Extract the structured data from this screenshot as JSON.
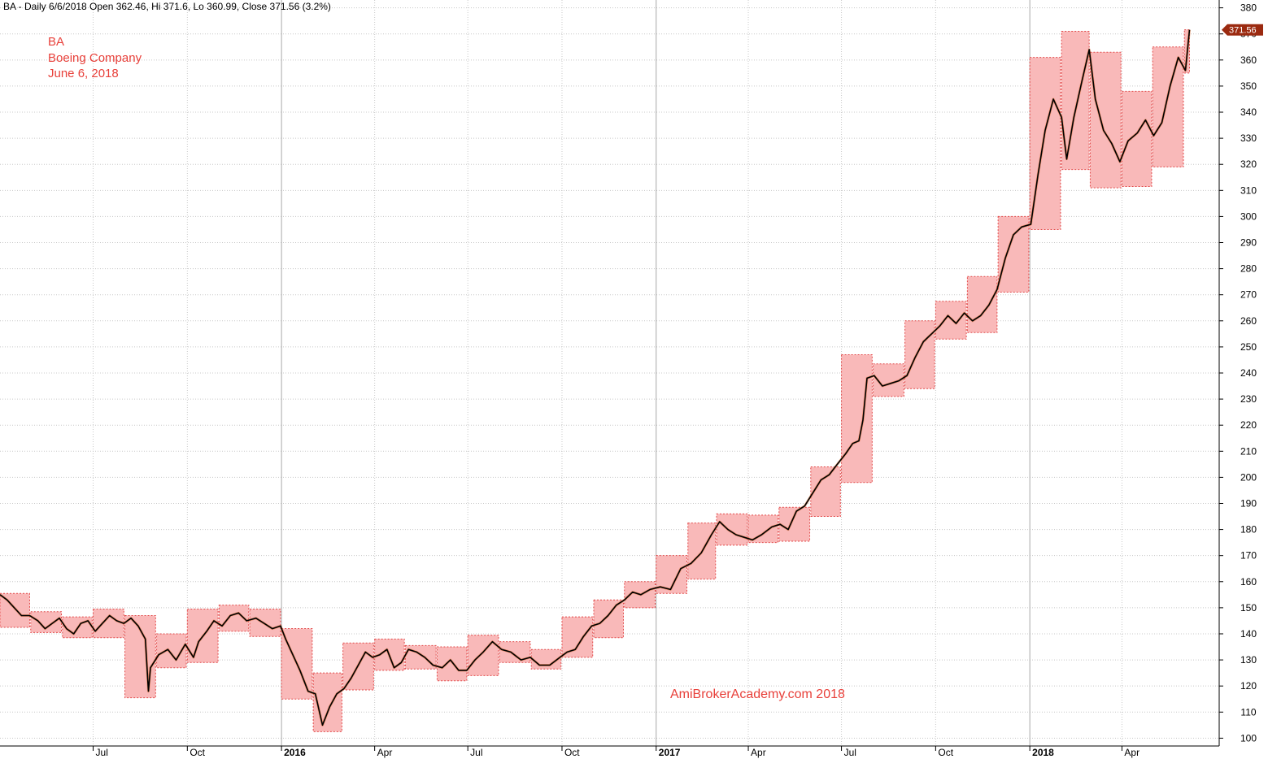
{
  "header": {
    "symbol": "BA",
    "text": "BA - Daily 6/6/2018 Open 362.46, Hi 371.6, Lo 360.99, Close 371.56 (3.2%)"
  },
  "annotation": {
    "line1": "BA",
    "line2": "Boeing Company",
    "line3": "June 6, 2018"
  },
  "watermark": "AmiBrokerAcademy.com  2018",
  "colors": {
    "box_fill": "#f9b9b9",
    "box_stroke": "#e24a4a",
    "price_line": "#000000",
    "accent": "#e8403a",
    "last_price_bg": "#9b2a10",
    "grid": "#c8c8c8"
  },
  "chart_data": {
    "type": "line",
    "title": "",
    "xlabel": "",
    "ylabel": "",
    "ylim": [
      97,
      383
    ],
    "xlim": [
      "2015-04-01",
      "2018-07-05"
    ],
    "grid": true,
    "y_ticks": [
      100,
      110,
      120,
      130,
      140,
      150,
      160,
      170,
      180,
      190,
      200,
      210,
      220,
      230,
      240,
      250,
      260,
      270,
      280,
      290,
      300,
      310,
      320,
      330,
      340,
      350,
      360,
      370,
      380
    ],
    "x_ticks": [
      {
        "label": "Jul",
        "date": "2015-07-01",
        "bold": false
      },
      {
        "label": "Oct",
        "date": "2015-10-01",
        "bold": false
      },
      {
        "label": "2016",
        "date": "2016-01-01",
        "bold": true
      },
      {
        "label": "Apr",
        "date": "2016-04-01",
        "bold": false
      },
      {
        "label": "Jul",
        "date": "2016-07-01",
        "bold": false
      },
      {
        "label": "Oct",
        "date": "2016-10-01",
        "bold": false
      },
      {
        "label": "2017",
        "date": "2017-01-01",
        "bold": true
      },
      {
        "label": "Apr",
        "date": "2017-04-01",
        "bold": false
      },
      {
        "label": "Jul",
        "date": "2017-07-01",
        "bold": false
      },
      {
        "label": "Oct",
        "date": "2017-10-01",
        "bold": false
      },
      {
        "label": "2018",
        "date": "2018-01-01",
        "bold": true
      },
      {
        "label": "Apr",
        "date": "2018-04-01",
        "bold": false
      }
    ],
    "last_price": "371.56",
    "last_value": 371.56,
    "series": [
      {
        "values": [
          [
            "2015-04-01",
            155
          ],
          [
            "2015-04-08",
            153
          ],
          [
            "2015-04-15",
            150
          ],
          [
            "2015-04-22",
            147
          ],
          [
            "2015-04-30",
            147
          ],
          [
            "2015-05-08",
            145
          ],
          [
            "2015-05-15",
            142
          ],
          [
            "2015-05-22",
            144
          ],
          [
            "2015-05-29",
            146
          ],
          [
            "2015-06-05",
            142
          ],
          [
            "2015-06-12",
            140
          ],
          [
            "2015-06-19",
            144
          ],
          [
            "2015-06-26",
            145
          ],
          [
            "2015-07-03",
            141
          ],
          [
            "2015-07-10",
            144
          ],
          [
            "2015-07-17",
            147
          ],
          [
            "2015-07-24",
            145
          ],
          [
            "2015-07-31",
            144
          ],
          [
            "2015-08-07",
            146
          ],
          [
            "2015-08-14",
            143
          ],
          [
            "2015-08-21",
            138
          ],
          [
            "2015-08-24",
            118
          ],
          [
            "2015-08-26",
            127
          ],
          [
            "2015-09-03",
            132
          ],
          [
            "2015-09-12",
            134
          ],
          [
            "2015-09-20",
            130
          ],
          [
            "2015-09-29",
            136
          ],
          [
            "2015-10-07",
            131
          ],
          [
            "2015-10-12",
            137
          ],
          [
            "2015-10-20",
            141
          ],
          [
            "2015-10-27",
            145
          ],
          [
            "2015-11-04",
            143
          ],
          [
            "2015-11-12",
            147
          ],
          [
            "2015-11-20",
            148
          ],
          [
            "2015-11-28",
            145
          ],
          [
            "2015-12-07",
            146
          ],
          [
            "2015-12-15",
            144
          ],
          [
            "2015-12-23",
            142
          ],
          [
            "2015-12-31",
            143
          ],
          [
            "2016-01-05",
            138
          ],
          [
            "2016-01-12",
            132
          ],
          [
            "2016-01-19",
            126
          ],
          [
            "2016-01-27",
            118
          ],
          [
            "2016-02-03",
            117
          ],
          [
            "2016-02-10",
            105
          ],
          [
            "2016-02-17",
            112
          ],
          [
            "2016-02-24",
            117
          ],
          [
            "2016-03-02",
            119
          ],
          [
            "2016-03-09",
            123
          ],
          [
            "2016-03-16",
            128
          ],
          [
            "2016-03-23",
            133
          ],
          [
            "2016-03-30",
            131
          ],
          [
            "2016-04-06",
            132
          ],
          [
            "2016-04-13",
            134
          ],
          [
            "2016-04-20",
            127
          ],
          [
            "2016-04-27",
            129
          ],
          [
            "2016-05-04",
            134
          ],
          [
            "2016-05-12",
            133
          ],
          [
            "2016-05-20",
            131
          ],
          [
            "2016-05-28",
            128
          ],
          [
            "2016-06-06",
            127
          ],
          [
            "2016-06-14",
            130
          ],
          [
            "2016-06-22",
            126
          ],
          [
            "2016-06-30",
            126
          ],
          [
            "2016-07-08",
            130
          ],
          [
            "2016-07-16",
            133
          ],
          [
            "2016-07-25",
            137
          ],
          [
            "2016-08-03",
            134
          ],
          [
            "2016-08-12",
            133
          ],
          [
            "2016-08-22",
            130
          ],
          [
            "2016-08-31",
            131
          ],
          [
            "2016-09-09",
            128
          ],
          [
            "2016-09-19",
            128
          ],
          [
            "2016-09-29",
            131
          ],
          [
            "2016-10-06",
            133
          ],
          [
            "2016-10-14",
            134
          ],
          [
            "2016-10-22",
            139
          ],
          [
            "2016-10-30",
            143
          ],
          [
            "2016-11-07",
            144
          ],
          [
            "2016-11-15",
            147
          ],
          [
            "2016-11-23",
            151
          ],
          [
            "2016-12-01",
            153
          ],
          [
            "2016-12-09",
            156
          ],
          [
            "2016-12-17",
            155
          ],
          [
            "2016-12-26",
            157
          ],
          [
            "2017-01-05",
            158
          ],
          [
            "2017-01-15",
            157
          ],
          [
            "2017-01-25",
            165
          ],
          [
            "2017-02-04",
            167
          ],
          [
            "2017-02-14",
            171
          ],
          [
            "2017-02-24",
            178
          ],
          [
            "2017-03-04",
            183
          ],
          [
            "2017-03-12",
            180
          ],
          [
            "2017-03-20",
            178
          ],
          [
            "2017-03-28",
            177
          ],
          [
            "2017-04-05",
            176
          ],
          [
            "2017-04-14",
            178
          ],
          [
            "2017-04-24",
            181
          ],
          [
            "2017-05-02",
            182
          ],
          [
            "2017-05-10",
            180
          ],
          [
            "2017-05-18",
            187
          ],
          [
            "2017-05-26",
            189
          ],
          [
            "2017-06-03",
            194
          ],
          [
            "2017-06-11",
            199
          ],
          [
            "2017-06-19",
            201
          ],
          [
            "2017-06-27",
            205
          ],
          [
            "2017-07-05",
            209
          ],
          [
            "2017-07-12",
            213
          ],
          [
            "2017-07-18",
            214
          ],
          [
            "2017-07-22",
            222
          ],
          [
            "2017-07-26",
            238
          ],
          [
            "2017-08-02",
            239
          ],
          [
            "2017-08-10",
            235
          ],
          [
            "2017-08-18",
            236
          ],
          [
            "2017-08-26",
            237
          ],
          [
            "2017-09-03",
            239
          ],
          [
            "2017-09-11",
            246
          ],
          [
            "2017-09-19",
            252
          ],
          [
            "2017-09-27",
            255
          ],
          [
            "2017-10-05",
            258
          ],
          [
            "2017-10-13",
            262
          ],
          [
            "2017-10-21",
            259
          ],
          [
            "2017-10-29",
            263
          ],
          [
            "2017-11-06",
            260
          ],
          [
            "2017-11-14",
            262
          ],
          [
            "2017-11-22",
            266
          ],
          [
            "2017-11-30",
            272
          ],
          [
            "2017-12-08",
            284
          ],
          [
            "2017-12-16",
            293
          ],
          [
            "2017-12-24",
            296
          ],
          [
            "2018-01-02",
            297
          ],
          [
            "2018-01-09",
            316
          ],
          [
            "2018-01-16",
            333
          ],
          [
            "2018-01-24",
            345
          ],
          [
            "2018-02-01",
            338
          ],
          [
            "2018-02-06",
            322
          ],
          [
            "2018-02-13",
            338
          ],
          [
            "2018-02-21",
            352
          ],
          [
            "2018-02-28",
            364
          ],
          [
            "2018-03-06",
            345
          ],
          [
            "2018-03-14",
            333
          ],
          [
            "2018-03-22",
            328
          ],
          [
            "2018-03-30",
            321
          ],
          [
            "2018-04-07",
            329
          ],
          [
            "2018-04-16",
            332
          ],
          [
            "2018-04-24",
            337
          ],
          [
            "2018-05-02",
            331
          ],
          [
            "2018-05-10",
            336
          ],
          [
            "2018-05-18",
            350
          ],
          [
            "2018-05-26",
            361
          ],
          [
            "2018-06-02",
            356
          ],
          [
            "2018-06-06",
            371.56
          ]
        ]
      }
    ],
    "range_boxes": [
      [
        "2015-04-01",
        "2015-04-30",
        142.5,
        155.5
      ],
      [
        "2015-05-01",
        "2015-05-31",
        140.5,
        148.5
      ],
      [
        "2015-06-01",
        "2015-06-30",
        138.5,
        146.5
      ],
      [
        "2015-07-01",
        "2015-07-31",
        138.5,
        149.5
      ],
      [
        "2015-08-01",
        "2015-08-31",
        115.5,
        147
      ],
      [
        "2015-09-01",
        "2015-09-30",
        127,
        140
      ],
      [
        "2015-10-01",
        "2015-10-31",
        129,
        149.5
      ],
      [
        "2015-11-01",
        "2015-11-30",
        141,
        151
      ],
      [
        "2015-12-01",
        "2015-12-31",
        139,
        149.5
      ],
      [
        "2016-01-01",
        "2016-01-31",
        115,
        142
      ],
      [
        "2016-02-01",
        "2016-02-29",
        102.5,
        125
      ],
      [
        "2016-03-01",
        "2016-03-31",
        118.5,
        136.5
      ],
      [
        "2016-04-01",
        "2016-04-30",
        126,
        138
      ],
      [
        "2016-05-01",
        "2016-05-31",
        126.5,
        135.5
      ],
      [
        "2016-06-01",
        "2016-06-30",
        122,
        135
      ],
      [
        "2016-07-01",
        "2016-07-31",
        124,
        139.5
      ],
      [
        "2016-08-01",
        "2016-08-31",
        129,
        137
      ],
      [
        "2016-09-01",
        "2016-09-30",
        126.5,
        134
      ],
      [
        "2016-10-01",
        "2016-10-31",
        131,
        146.5
      ],
      [
        "2016-11-01",
        "2016-11-30",
        138.5,
        153
      ],
      [
        "2016-12-01",
        "2016-12-31",
        150,
        160
      ],
      [
        "2017-01-01",
        "2017-01-31",
        155.5,
        170
      ],
      [
        "2017-02-01",
        "2017-02-28",
        161,
        182.5
      ],
      [
        "2017-03-01",
        "2017-03-31",
        174,
        186
      ],
      [
        "2017-04-01",
        "2017-04-30",
        175,
        185.5
      ],
      [
        "2017-05-01",
        "2017-05-31",
        175.5,
        188.5
      ],
      [
        "2017-06-01",
        "2017-06-30",
        185,
        204
      ],
      [
        "2017-07-01",
        "2017-07-31",
        198,
        247
      ],
      [
        "2017-08-01",
        "2017-08-31",
        231,
        243.5
      ],
      [
        "2017-09-01",
        "2017-09-30",
        234,
        260
      ],
      [
        "2017-10-01",
        "2017-10-31",
        253,
        267.5
      ],
      [
        "2017-11-01",
        "2017-11-30",
        255.5,
        277
      ],
      [
        "2017-12-01",
        "2017-12-31",
        271,
        300
      ],
      [
        "2018-01-01",
        "2018-01-31",
        295,
        361
      ],
      [
        "2018-02-01",
        "2018-02-28",
        318,
        371
      ],
      [
        "2018-03-01",
        "2018-03-31",
        311,
        363
      ],
      [
        "2018-04-01",
        "2018-04-30",
        311.5,
        348
      ],
      [
        "2018-05-01",
        "2018-05-31",
        319,
        365
      ],
      [
        "2018-06-01",
        "2018-06-06",
        355,
        371.6
      ]
    ]
  }
}
